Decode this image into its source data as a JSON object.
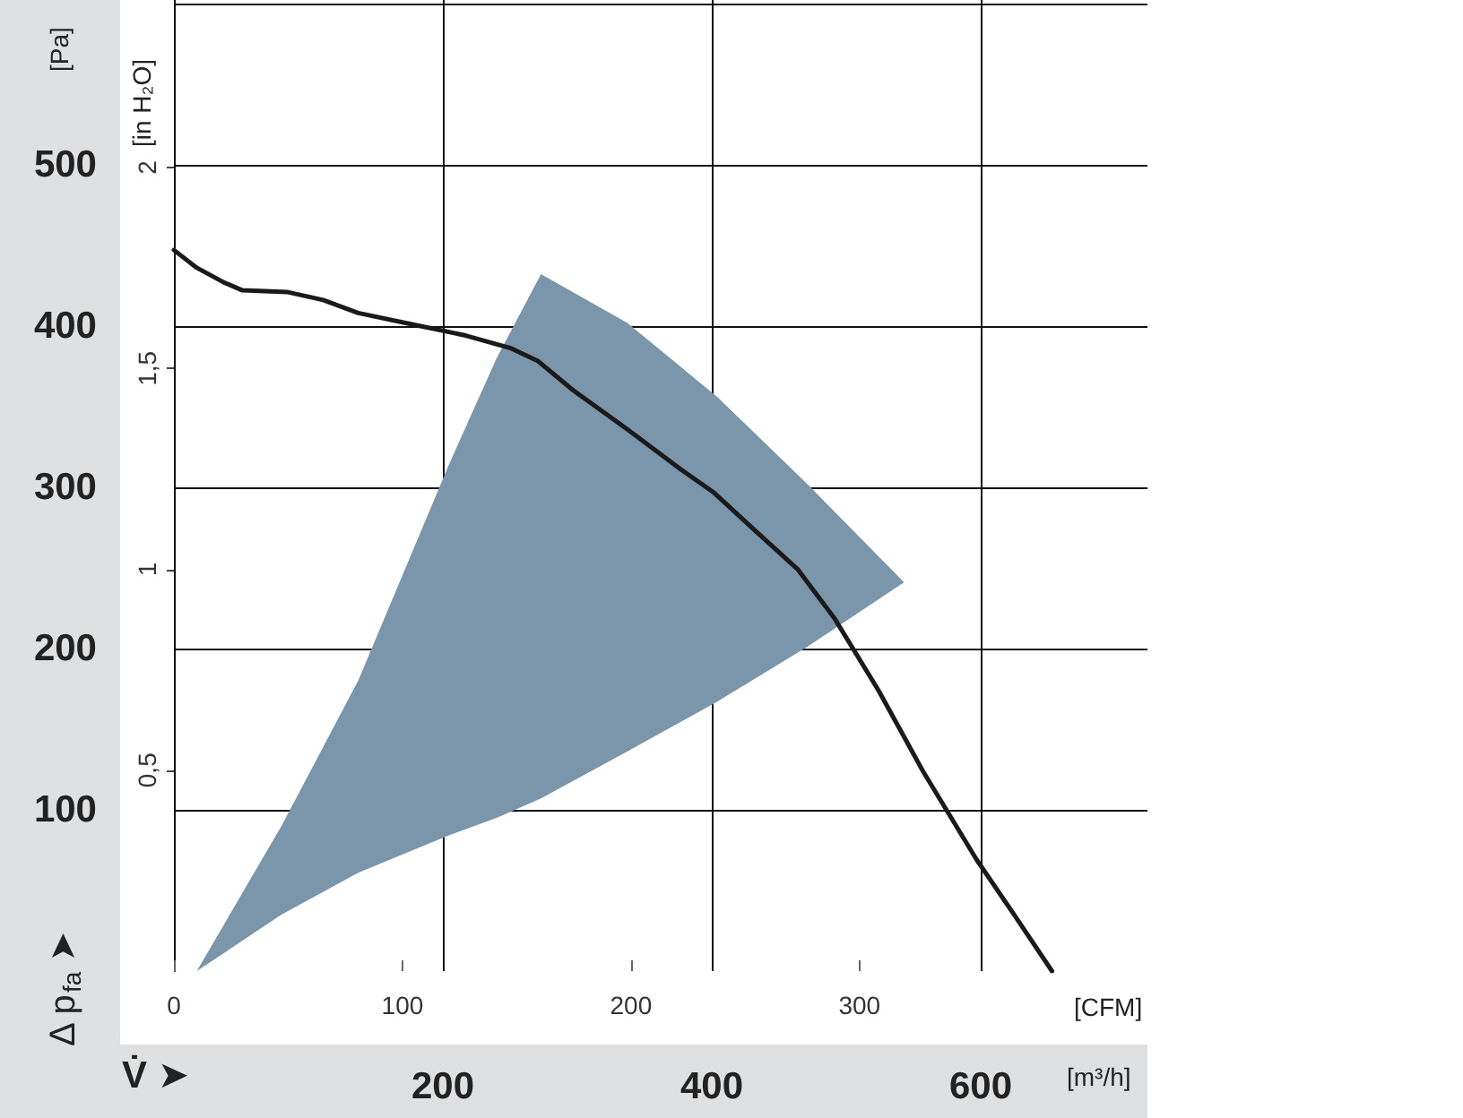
{
  "chart_data": {
    "type": "line",
    "ylabel": "[Pa]",
    "y2label": "[in H₂O]",
    "xlabel": "[m³/h]",
    "x2label": "[CFM]",
    "annotations": [
      "Δ p$_{fa}$ ➤",
      "V̇ ➤"
    ],
    "xlim": [
      0,
      724
    ],
    "xticks": [
      200,
      400,
      600
    ],
    "x2lim": [
      0,
      426
    ],
    "x2ticks": [
      0,
      100,
      200,
      300
    ],
    "ylim": [
      0,
      602
    ],
    "yticks": [
      100,
      200,
      300,
      400,
      500
    ],
    "y2lim": [
      0,
      2.417
    ],
    "y2ticks": [
      {
        "value": 0.5,
        "label": "0,5"
      },
      {
        "value": 1,
        "label": "1"
      },
      {
        "value": 1.5,
        "label": "1,5"
      },
      {
        "value": 2,
        "label": "2"
      }
    ],
    "grid": true,
    "marker": "none",
    "line_style": "solid",
    "series": [
      {
        "type": "area",
        "color": "#7b95ab",
        "x": [
          17,
          80,
          137,
          204,
          240,
          273,
          337,
          404,
          471,
          543,
          471,
          404,
          337,
          273,
          240,
          204,
          137,
          80,
          17
        ],
        "values": [
          0,
          90,
          180,
          313,
          380,
          432,
          402,
          356,
          302,
          241,
          201,
          167,
          136,
          107,
          95,
          84,
          61,
          35,
          0
        ]
      },
      {
        "color": "#1a1a1a",
        "x": [
          0,
          17,
          37,
          51,
          84,
          111,
          137,
          177,
          217,
          251,
          271,
          297,
          337,
          377,
          401,
          431,
          464,
          491,
          524,
          557,
          597,
          624,
          653
        ],
        "values": [
          447,
          436,
          427,
          422,
          421,
          416,
          408,
          401,
          394,
          386,
          378,
          360,
          336,
          311,
          297,
          274,
          249,
          219,
          174,
          124,
          69,
          36,
          0
        ]
      }
    ]
  }
}
